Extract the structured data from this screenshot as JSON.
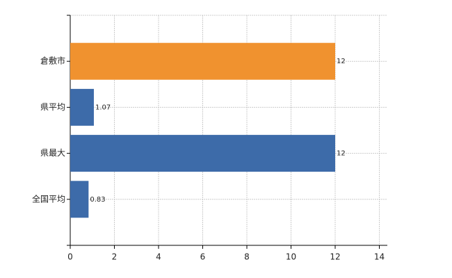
{
  "chart_data": {
    "type": "bar",
    "orientation": "horizontal",
    "categories": [
      "倉敷市",
      "県平均",
      "県最大",
      "全国平均"
    ],
    "values": [
      12,
      1.07,
      12,
      0.83
    ],
    "colors": [
      "#f0922f",
      "#3d6ba9",
      "#3d6ba9",
      "#3d6ba9"
    ],
    "xlim": [
      0,
      14
    ],
    "xticks": [
      0,
      2,
      4,
      6,
      8,
      10,
      12,
      14
    ],
    "grid": true
  }
}
